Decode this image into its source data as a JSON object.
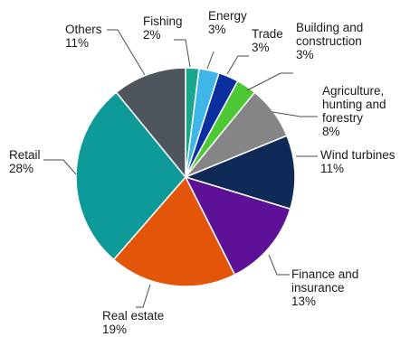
{
  "chart_data": {
    "type": "pie",
    "start_angle_deg": 0,
    "direction": "clockwise",
    "slices": [
      {
        "label": "Fishing",
        "value": 2,
        "value_label": "2%",
        "color": "#1aa68c"
      },
      {
        "label": "Energy",
        "value": 3,
        "value_label": "3%",
        "color": "#3fb6e8"
      },
      {
        "label": "Trade",
        "value": 3,
        "value_label": "3%",
        "color": "#0b2f9f"
      },
      {
        "label": "Building and construction",
        "value": 3,
        "value_label": "3%",
        "color": "#4cc934"
      },
      {
        "label": "Agriculture, hunting and forestry",
        "value": 8,
        "value_label": "8%",
        "color": "#858585"
      },
      {
        "label": "Wind turbines",
        "value": 11,
        "value_label": "11%",
        "color": "#0f2a57"
      },
      {
        "label": "Finance and insurance",
        "value": 13,
        "value_label": "13%",
        "color": "#5c1197"
      },
      {
        "label": "Real estate",
        "value": 19,
        "value_label": "19%",
        "color": "#e35609"
      },
      {
        "label": "Retail",
        "value": 28,
        "value_label": "28%",
        "color": "#0d9a98"
      },
      {
        "label": "Others",
        "value": 11,
        "value_label": "11%",
        "color": "#4f555c"
      }
    ]
  }
}
